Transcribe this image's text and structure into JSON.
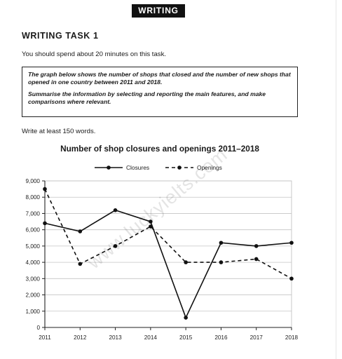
{
  "header": {
    "section_label": "WRITING"
  },
  "task": {
    "title": "WRITING TASK 1",
    "instruction": "You should spend about 20 minutes on this task.",
    "prompt_line1": "The graph below shows the number of shops that closed and the number of new shops that opened in one country between 2011 and 2018.",
    "prompt_line2": "Summarise the information by selecting and reporting the main features, and make comparisons where relevant.",
    "word_count": "Write at least 150 words."
  },
  "watermark": "www.luckyielts.com",
  "chart_data": {
    "type": "line",
    "title": "Number of shop closures and openings 2011–2018",
    "categories": [
      "2011",
      "2012",
      "2013",
      "2014",
      "2015",
      "2016",
      "2017",
      "2018"
    ],
    "y_tick_labels": [
      "0",
      "1,000",
      "2,000",
      "3,000",
      "4,000",
      "5,000",
      "6,000",
      "7,000",
      "8,000",
      "9,000"
    ],
    "ylim": [
      0,
      9000
    ],
    "grid": true,
    "legend_position": "top-center",
    "series": [
      {
        "name": "Closures",
        "style": "solid",
        "values": [
          6400,
          5900,
          7200,
          6500,
          600,
          5200,
          5000,
          5200
        ]
      },
      {
        "name": "Openings",
        "style": "dashed",
        "values": [
          8500,
          3900,
          5000,
          6200,
          4000,
          4000,
          4200,
          3000
        ]
      }
    ]
  }
}
